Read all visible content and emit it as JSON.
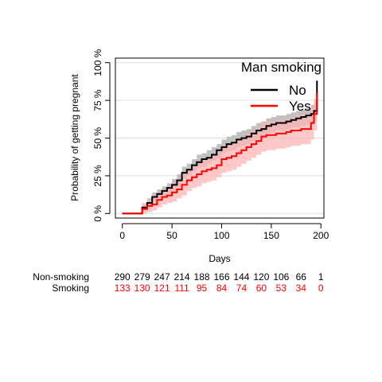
{
  "chart_data": {
    "type": "line",
    "subtype": "kaplan-meier cumulative incidence with confidence bands",
    "xlabel": "Days",
    "ylabel": "Probability of getting pregnant",
    "xlim": [
      -7,
      203
    ],
    "ylim": [
      -0.03,
      1.03
    ],
    "x_ticks": [
      0,
      50,
      100,
      150,
      200
    ],
    "y_ticks": [
      {
        "value": 0,
        "label": "0 %"
      },
      {
        "value": 0.25,
        "label": "25 %"
      },
      {
        "value": 0.5,
        "label": "50 %"
      },
      {
        "value": 0.75,
        "label": "75 %"
      },
      {
        "value": 1,
        "label": "100 %"
      }
    ],
    "grid": "horizontal",
    "legend": {
      "title": "Man smoking",
      "position": "top-right"
    },
    "series": [
      {
        "name": "No",
        "color": "#000000",
        "band_color": "#bebebe",
        "x": [
          0,
          17,
          20,
          25,
          30,
          35,
          40,
          45,
          50,
          55,
          60,
          65,
          70,
          75,
          80,
          85,
          90,
          95,
          100,
          105,
          110,
          115,
          120,
          125,
          130,
          135,
          140,
          145,
          150,
          155,
          160,
          165,
          170,
          175,
          180,
          185,
          190,
          193,
          196
        ],
        "y": [
          0,
          0,
          0.04,
          0.07,
          0.11,
          0.13,
          0.15,
          0.17,
          0.19,
          0.22,
          0.27,
          0.29,
          0.32,
          0.34,
          0.36,
          0.37,
          0.39,
          0.42,
          0.44,
          0.46,
          0.47,
          0.49,
          0.5,
          0.51,
          0.53,
          0.55,
          0.56,
          0.58,
          0.59,
          0.6,
          0.6,
          0.61,
          0.62,
          0.63,
          0.64,
          0.65,
          0.66,
          0.68,
          0.88
        ],
        "lower": [
          0,
          0,
          0.02,
          0.05,
          0.08,
          0.1,
          0.12,
          0.13,
          0.15,
          0.18,
          0.23,
          0.25,
          0.28,
          0.3,
          0.31,
          0.33,
          0.35,
          0.37,
          0.4,
          0.41,
          0.42,
          0.44,
          0.45,
          0.46,
          0.48,
          0.5,
          0.51,
          0.53,
          0.54,
          0.55,
          0.55,
          0.56,
          0.57,
          0.57,
          0.58,
          0.59,
          0.6,
          0.61,
          0.7
        ],
        "upper": [
          0,
          0,
          0.06,
          0.1,
          0.14,
          0.16,
          0.18,
          0.2,
          0.23,
          0.26,
          0.31,
          0.33,
          0.36,
          0.39,
          0.4,
          0.42,
          0.44,
          0.46,
          0.49,
          0.51,
          0.52,
          0.54,
          0.55,
          0.56,
          0.58,
          0.6,
          0.61,
          0.63,
          0.64,
          0.65,
          0.65,
          0.66,
          0.67,
          0.68,
          0.69,
          0.7,
          0.72,
          0.74,
          0.92
        ]
      },
      {
        "name": "Yes",
        "color": "#ff0000",
        "band_color": "#ffb6b6",
        "x": [
          0,
          17,
          20,
          25,
          30,
          35,
          40,
          45,
          50,
          55,
          60,
          65,
          70,
          75,
          80,
          85,
          90,
          95,
          100,
          105,
          110,
          115,
          120,
          125,
          130,
          135,
          140,
          145,
          150,
          155,
          160,
          165,
          170,
          175,
          180,
          185,
          190,
          193,
          196
        ],
        "y": [
          0,
          0,
          0.03,
          0.05,
          0.06,
          0.09,
          0.11,
          0.12,
          0.14,
          0.16,
          0.19,
          0.22,
          0.24,
          0.26,
          0.28,
          0.29,
          0.3,
          0.32,
          0.36,
          0.37,
          0.38,
          0.4,
          0.42,
          0.44,
          0.46,
          0.48,
          0.51,
          0.52,
          0.52,
          0.53,
          0.53,
          0.54,
          0.55,
          0.55,
          0.56,
          0.56,
          0.6,
          0.66,
          0.8
        ],
        "lower": [
          0,
          0,
          0.0,
          0.01,
          0.02,
          0.04,
          0.06,
          0.07,
          0.08,
          0.1,
          0.12,
          0.15,
          0.17,
          0.18,
          0.2,
          0.21,
          0.22,
          0.24,
          0.27,
          0.28,
          0.29,
          0.31,
          0.33,
          0.35,
          0.37,
          0.39,
          0.41,
          0.42,
          0.42,
          0.43,
          0.43,
          0.44,
          0.45,
          0.45,
          0.46,
          0.46,
          0.49,
          0.55,
          0.66
        ],
        "upper": [
          0,
          0,
          0.07,
          0.09,
          0.11,
          0.14,
          0.16,
          0.18,
          0.2,
          0.23,
          0.26,
          0.29,
          0.31,
          0.34,
          0.36,
          0.37,
          0.38,
          0.41,
          0.45,
          0.46,
          0.47,
          0.49,
          0.51,
          0.53,
          0.55,
          0.57,
          0.6,
          0.61,
          0.61,
          0.62,
          0.62,
          0.63,
          0.64,
          0.65,
          0.66,
          0.66,
          0.7,
          0.76,
          0.82
        ]
      }
    ],
    "risk_table": {
      "times": [
        0,
        20,
        40,
        60,
        80,
        100,
        120,
        140,
        160,
        180,
        200
      ],
      "rows": [
        {
          "label": "Non-smoking",
          "color": "#000000",
          "counts": [
            "290",
            "279",
            "247",
            "214",
            "188",
            "166",
            "144",
            "120",
            "106",
            "66",
            "1"
          ]
        },
        {
          "label": "Smoking",
          "color": "#ff0000",
          "counts": [
            "133",
            "130",
            "121",
            "111",
            "95",
            "84",
            "74",
            "60",
            "53",
            "34",
            "0"
          ]
        }
      ]
    }
  }
}
